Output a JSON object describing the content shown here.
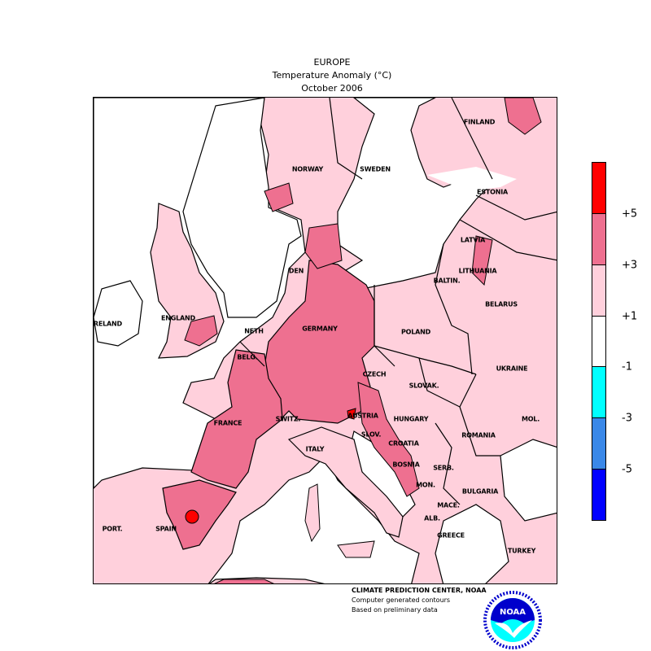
{
  "header": {
    "region": "EUROPE",
    "subtitle": "Temperature Anomaly (°C)",
    "period": "October 2006"
  },
  "legend": {
    "unit": "°C",
    "bins": [
      {
        "range": "> +5",
        "color": "#ff0000"
      },
      {
        "range": "+3 to +5",
        "color": "#ee7090"
      },
      {
        "range": "+1 to +3",
        "color": "#ffd0dc"
      },
      {
        "range": "-1 to +1",
        "color": "#ffffff"
      },
      {
        "range": "-3 to -1",
        "color": "#00ffff"
      },
      {
        "range": "-5 to -3",
        "color": "#3a88e8"
      },
      {
        "range": "< -5",
        "color": "#0000ff"
      }
    ],
    "ticks": [
      "+5",
      "+3",
      "+1",
      "-1",
      "-3",
      "-5"
    ]
  },
  "countries": [
    "FINLAND",
    "NORWAY",
    "SWEDEN",
    "ESTONIA",
    "LATVIA",
    "DEN",
    "LITHUANIA",
    "BALTIN.",
    "BELARUS",
    "IRELAND",
    "ENGLAND",
    "NETH",
    "GERMANY",
    "POLAND",
    "BELG.",
    "CZECH",
    "UKRAINE",
    "SLOVAK.",
    "FRANCE",
    "SWITZ.",
    "AUSTRIA",
    "HUNGARY",
    "MOL.",
    "ROMANIA",
    "SLOV.",
    "CROATIA",
    "ITALY",
    "BOSNIA",
    "SERB.",
    "MON.",
    "BULGARIA",
    "MACE.",
    "PORT.",
    "SPAIN",
    "ALB.",
    "GREECE",
    "TURKEY"
  ],
  "credits": [
    "CLIMATE PREDICTION CENTER, NOAA",
    "Computer generated contours",
    "Based on preliminary data"
  ],
  "logo": {
    "text": "NOAA",
    "ring_text": "NATIONAL OCEANIC AND ATMOSPHERIC ADMINISTRATION · U.S. DEPARTMENT OF COMMERCE"
  }
}
